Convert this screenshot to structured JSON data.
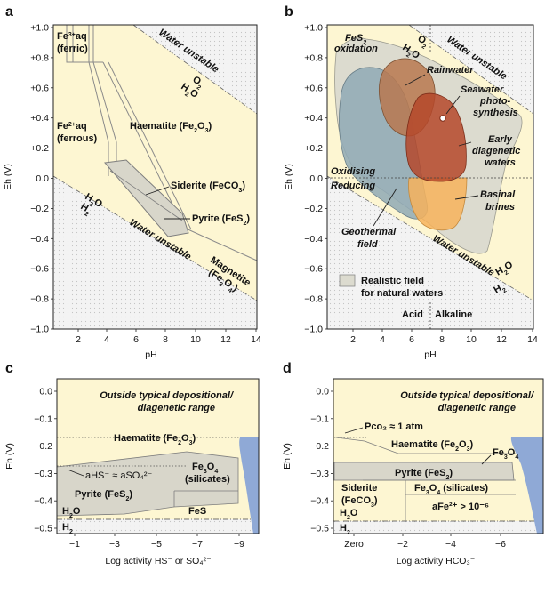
{
  "panels": {
    "a": {
      "letter": "a",
      "xlabel": "pH",
      "ylabel": "Eh (V)",
      "xticks": [
        "2",
        "4",
        "6",
        "8",
        "10",
        "12",
        "14"
      ],
      "yticks": [
        "+1.0",
        "+0.8",
        "+0.6",
        "+0.4",
        "+0.2",
        "0.0",
        "−0.2",
        "−0.4",
        "−0.6",
        "−0.8",
        "−1.0"
      ],
      "labels": {
        "fe3_1": "Fe",
        "fe3_2": "3+",
        "fe3_3": "aq",
        "fe3_4": "(ferric)",
        "fe2_1": "Fe",
        "fe2_2": "2+",
        "fe2_3": "aq",
        "fe2_4": "(ferrous)",
        "haem": "Haematite (Fe",
        "haem_sub": "2",
        "haem_o": "O",
        "haem_sub2": "3",
        "haem_end": ")",
        "sid": "Siderite (FeCO",
        "sid_sub": "3",
        "sid_end": ")",
        "pyr": "Pyrite (FeS",
        "pyr_sub": "2",
        "pyr_end": ")",
        "mag1": "Magnetite",
        "mag2": "(Fe",
        "mag2_sub": "3",
        "mag2_o": "O",
        "mag2_sub2": "4",
        "mag2_end": ")",
        "wu_top": "Water unstable",
        "wu_bot": "Water unstable",
        "o2": "O",
        "o2_sub": "2",
        "h2o_top": "H",
        "h2o_top_sub": "2",
        "h2o_top_o": "O",
        "h2o_bot": "H",
        "h2o_bot_sub": "2",
        "h2o_bot_o": "O",
        "h2": "H",
        "h2_sub": "2"
      }
    },
    "b": {
      "letter": "b",
      "xlabel": "pH",
      "ylabel": "Eh (V)",
      "xticks": [
        "2",
        "4",
        "6",
        "8",
        "10",
        "12",
        "14"
      ],
      "yticks": [
        "+1.0",
        "+0.8",
        "+0.6",
        "+0.4",
        "+0.2",
        "0.0",
        "−0.2",
        "−0.4",
        "−0.6",
        "−0.8",
        "−1.0"
      ],
      "labels": {
        "fes2ox_1": "FeS",
        "fes2ox_sub": "2",
        "fes2ox_2": "oxidation",
        "rain": "Rainwater",
        "sea1": "Seawater",
        "sea2": "photo-",
        "sea3": "synthesis",
        "early1": "Early",
        "early2": "diagenetic",
        "early3": "waters",
        "basinal1": "Basinal",
        "basinal2": "brines",
        "geo1": "Geothermal",
        "geo2": "field",
        "oxid": "Oxidising",
        "red": "Reducing",
        "legend1": "Realistic field",
        "legend2": "for natural waters",
        "acid": "Acid",
        "alk": "Alkaline",
        "wu_top": "Water unstable",
        "wu_bot": "Water unstable",
        "o2": "O",
        "o2_sub": "2",
        "h2o_top": "H",
        "h2o_top_sub": "2",
        "h2o_top_o": "O",
        "h2o_bot": "H",
        "h2o_bot_sub": "2",
        "h2o_bot_o": "O",
        "h2": "H",
        "h2_sub": "2"
      }
    },
    "c": {
      "letter": "c",
      "xlabel": "Log activity HS⁻ or SO₄²⁻",
      "ylabel": "Eh (V)",
      "xticks": [
        "−1",
        "−3",
        "−5",
        "−7",
        "−9"
      ],
      "yticks": [
        "0.0",
        "−0.1",
        "−0.2",
        "−0.3",
        "−0.4",
        "−0.5"
      ],
      "labels": {
        "outside1": "Outside typical depositional/",
        "outside2": "diagenetic range",
        "haem": "Haematite (Fe",
        "haem_sub": "2",
        "haem_o": "O",
        "haem_sub2": "3",
        "haem_end": ")",
        "ahs": "aHS⁻ ≈ aSO₄²⁻",
        "fe3o4_1": "Fe",
        "fe3o4_sub": "3",
        "fe3o4_o": "O",
        "fe3o4_sub2": "4",
        "fe3o4_2": "(silicates)",
        "pyr": "Pyrite (FeS",
        "pyr_sub": "2",
        "pyr_end": ")",
        "fes": "FeS",
        "h2o": "H",
        "h2o_sub": "2",
        "h2o_o": "O",
        "h2": "H",
        "h2_sub": "2"
      }
    },
    "d": {
      "letter": "d",
      "xlabel": "Log activity HCO₃⁻",
      "ylabel": "Eh (V)",
      "xticks": [
        "Zero",
        "−2",
        "−4",
        "−6"
      ],
      "yticks": [
        "0.0",
        "−0.1",
        "−0.2",
        "−0.3",
        "−0.4",
        "−0.5"
      ],
      "labels": {
        "outside1": "Outside typical depositional/",
        "outside2": "diagenetic range",
        "pco2": "Pco₂ ≈ 1 atm",
        "haem": "Haematite (Fe",
        "haem_sub": "2",
        "haem_o": "O",
        "haem_sub2": "3",
        "haem_end": ")",
        "fe3o4": "Fe",
        "fe3o4_sub": "3",
        "fe3o4_o": "O",
        "fe3o4_sub2": "4",
        "pyr": "Pyrite (FeS",
        "pyr_sub": "2",
        "pyr_end": ")",
        "sid1": "Siderite",
        "sid2": "(FeCO",
        "sid2_sub": "3",
        "sid2_end": ")",
        "fe3o4sil": "Fe",
        "fe3o4sil_sub": "3",
        "fe3o4sil_o": "O",
        "fe3o4sil_sub2": "4",
        "fe3o4sil_end": " (silicates)",
        "afe": "aFe²⁺ > 10⁻⁶",
        "h2o": "H",
        "h2o_sub": "2",
        "h2o_o": "O",
        "h2": "H",
        "h2_sub": "2"
      }
    }
  },
  "colors": {
    "stable_fill": "#fdf6d2",
    "unstable_fill": "#f1f1f1",
    "stipple": "#c9c9c9",
    "region_line": "#8a8a8a",
    "field_grey": "#dcdbcf",
    "geo_blue": "#8fa9b5",
    "rain_brown": "#b9784f",
    "early_red": "#b5482a",
    "basinal_orange": "#f7b35c",
    "outside_blue": "#8fa9d6"
  }
}
